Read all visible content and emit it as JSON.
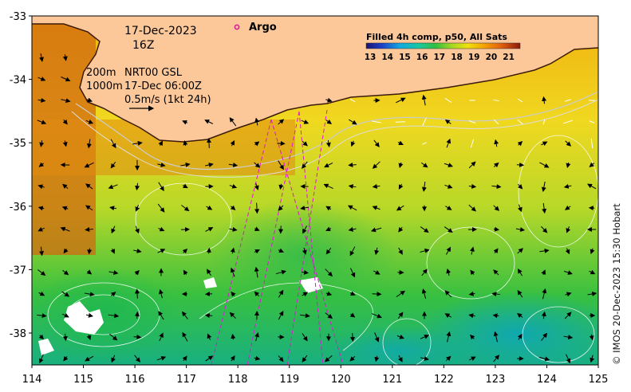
{
  "map": {
    "date_line": "17-Dec-2023",
    "time_line": "16Z",
    "argo_label": "Argo",
    "legend_title": "Filled 4h comp, p50, All Sats",
    "colorbar_ticks": [
      "13",
      "14",
      "15",
      "16",
      "17",
      "18",
      "19",
      "20",
      "21"
    ],
    "depth_200": "200m",
    "depth_1000": "1000m",
    "current_source": "NRT00 GSL",
    "current_time": "17-Dec 06:00Z",
    "scale_text": "0.5m/s (1kt 24h)",
    "credit": "© IMOS 20-Dec-2023 15:30 Hobart",
    "x_ticks": [
      "114",
      "115",
      "116",
      "117",
      "118",
      "119",
      "120",
      "121",
      "122",
      "123",
      "124",
      "125"
    ],
    "y_ticks": [
      "-33",
      "-34",
      "-35",
      "-36",
      "-37",
      "-38"
    ],
    "colors": {
      "land": "#fcc89a",
      "argo_marker": "#e0129a",
      "colormap": [
        "#1a1470",
        "#1e3fc8",
        "#12a8e0",
        "#18c8a0",
        "#30c040",
        "#a8d820",
        "#f0e010",
        "#f5a000",
        "#e06010",
        "#b03a08",
        "#8a1a08"
      ]
    }
  }
}
